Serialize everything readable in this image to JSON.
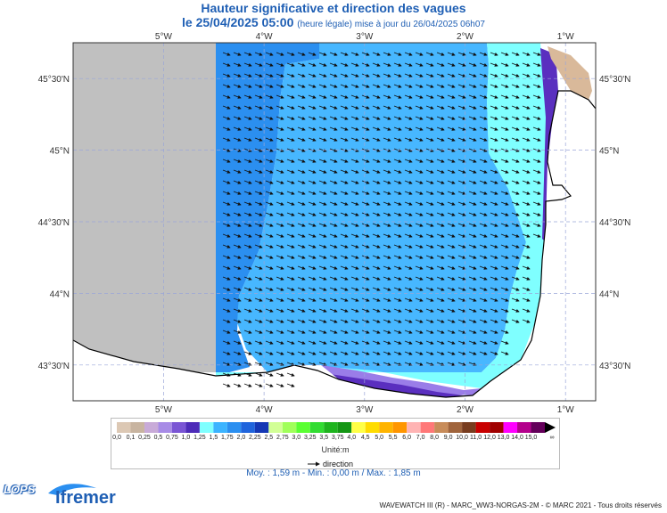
{
  "header": {
    "title": "Hauteur significative et direction des vagues",
    "date_line": "le 25/04/2025 05:00",
    "update_line": "(heure légale) mise à jour du 26/04/2025 06h07"
  },
  "map": {
    "lon_labels": [
      "5°W",
      "4°W",
      "3°W",
      "2°W",
      "1°W"
    ],
    "lat_labels": [
      "45°30'N",
      "45°N",
      "44°30'N",
      "44°N",
      "43°30'N"
    ],
    "lon_range": [
      -5.9,
      -0.7
    ],
    "lat_range": [
      43.25,
      45.75
    ],
    "arrow_direction": "east-southeast",
    "colors": {
      "land": "#c0c0c0",
      "coast_land": "#d9b99a",
      "band_175": "#2b8ff0",
      "band_15": "#47b7ff",
      "band_125": "#7fffff",
      "band_10": "#5a2fbf",
      "band_075": "#9a7de8"
    }
  },
  "legend": {
    "values": [
      "0,0",
      "0,1",
      "0,25",
      "0,5",
      "0,75",
      "1,0",
      "1,25",
      "1,5",
      "1,75",
      "2,0",
      "2,25",
      "2,5",
      "2,75",
      "3,0",
      "3,25",
      "3,5",
      "3,75",
      "4,0",
      "4,5",
      "5,0",
      "5,5",
      "6,0",
      "7,0",
      "8,0",
      "9,0",
      "10,0",
      "11,0",
      "12,0",
      "13,0",
      "14,0",
      "15,0"
    ],
    "colors": [
      "#dcc8b4",
      "#c8b4a0",
      "#c8aad8",
      "#a78be6",
      "#7a55d4",
      "#4d2bb8",
      "#7fffff",
      "#3cb4ff",
      "#2b8ff0",
      "#1f64dc",
      "#1437b4",
      "#d2ff96",
      "#a0ff5a",
      "#5aff32",
      "#32dc32",
      "#1eb41e",
      "#149614",
      "#ffff46",
      "#ffdc00",
      "#ffb400",
      "#ff9600",
      "#ffb4b4",
      "#ff7878",
      "#c88c5a",
      "#a0643c",
      "#783c1e",
      "#c80000",
      "#a00000",
      "#ff00ff",
      "#b4008c",
      "#64005a"
    ],
    "overflow": "∞",
    "unit": "Unité:m",
    "direction_label": "direction"
  },
  "stats": "Moy. : 1,59 m   -   Min. : 0,00 m / Max. : 1,85 m",
  "branding": {
    "lops": "LOPS",
    "ifremer": "Ifremer"
  },
  "credit": "WAVEWATCH III (R) - MARC_WW3-NORGAS-2M - © MARC 2021 - Tous droits réservés"
}
